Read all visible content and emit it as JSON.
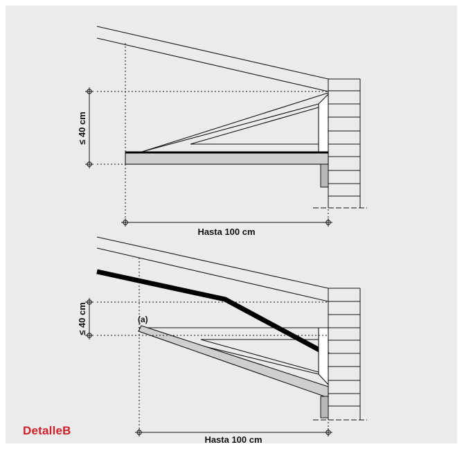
{
  "caption": "DetalleB",
  "colors": {
    "caption": "#d0202a",
    "panel": "#ebebeb"
  },
  "top_detail": {
    "height_label": "≤ 40 cm",
    "width_label": "Hasta 100 cm"
  },
  "bottom_detail": {
    "height_label": "≤ 40 cm",
    "width_label": "Hasta 100 cm",
    "annotation": "(a)"
  }
}
